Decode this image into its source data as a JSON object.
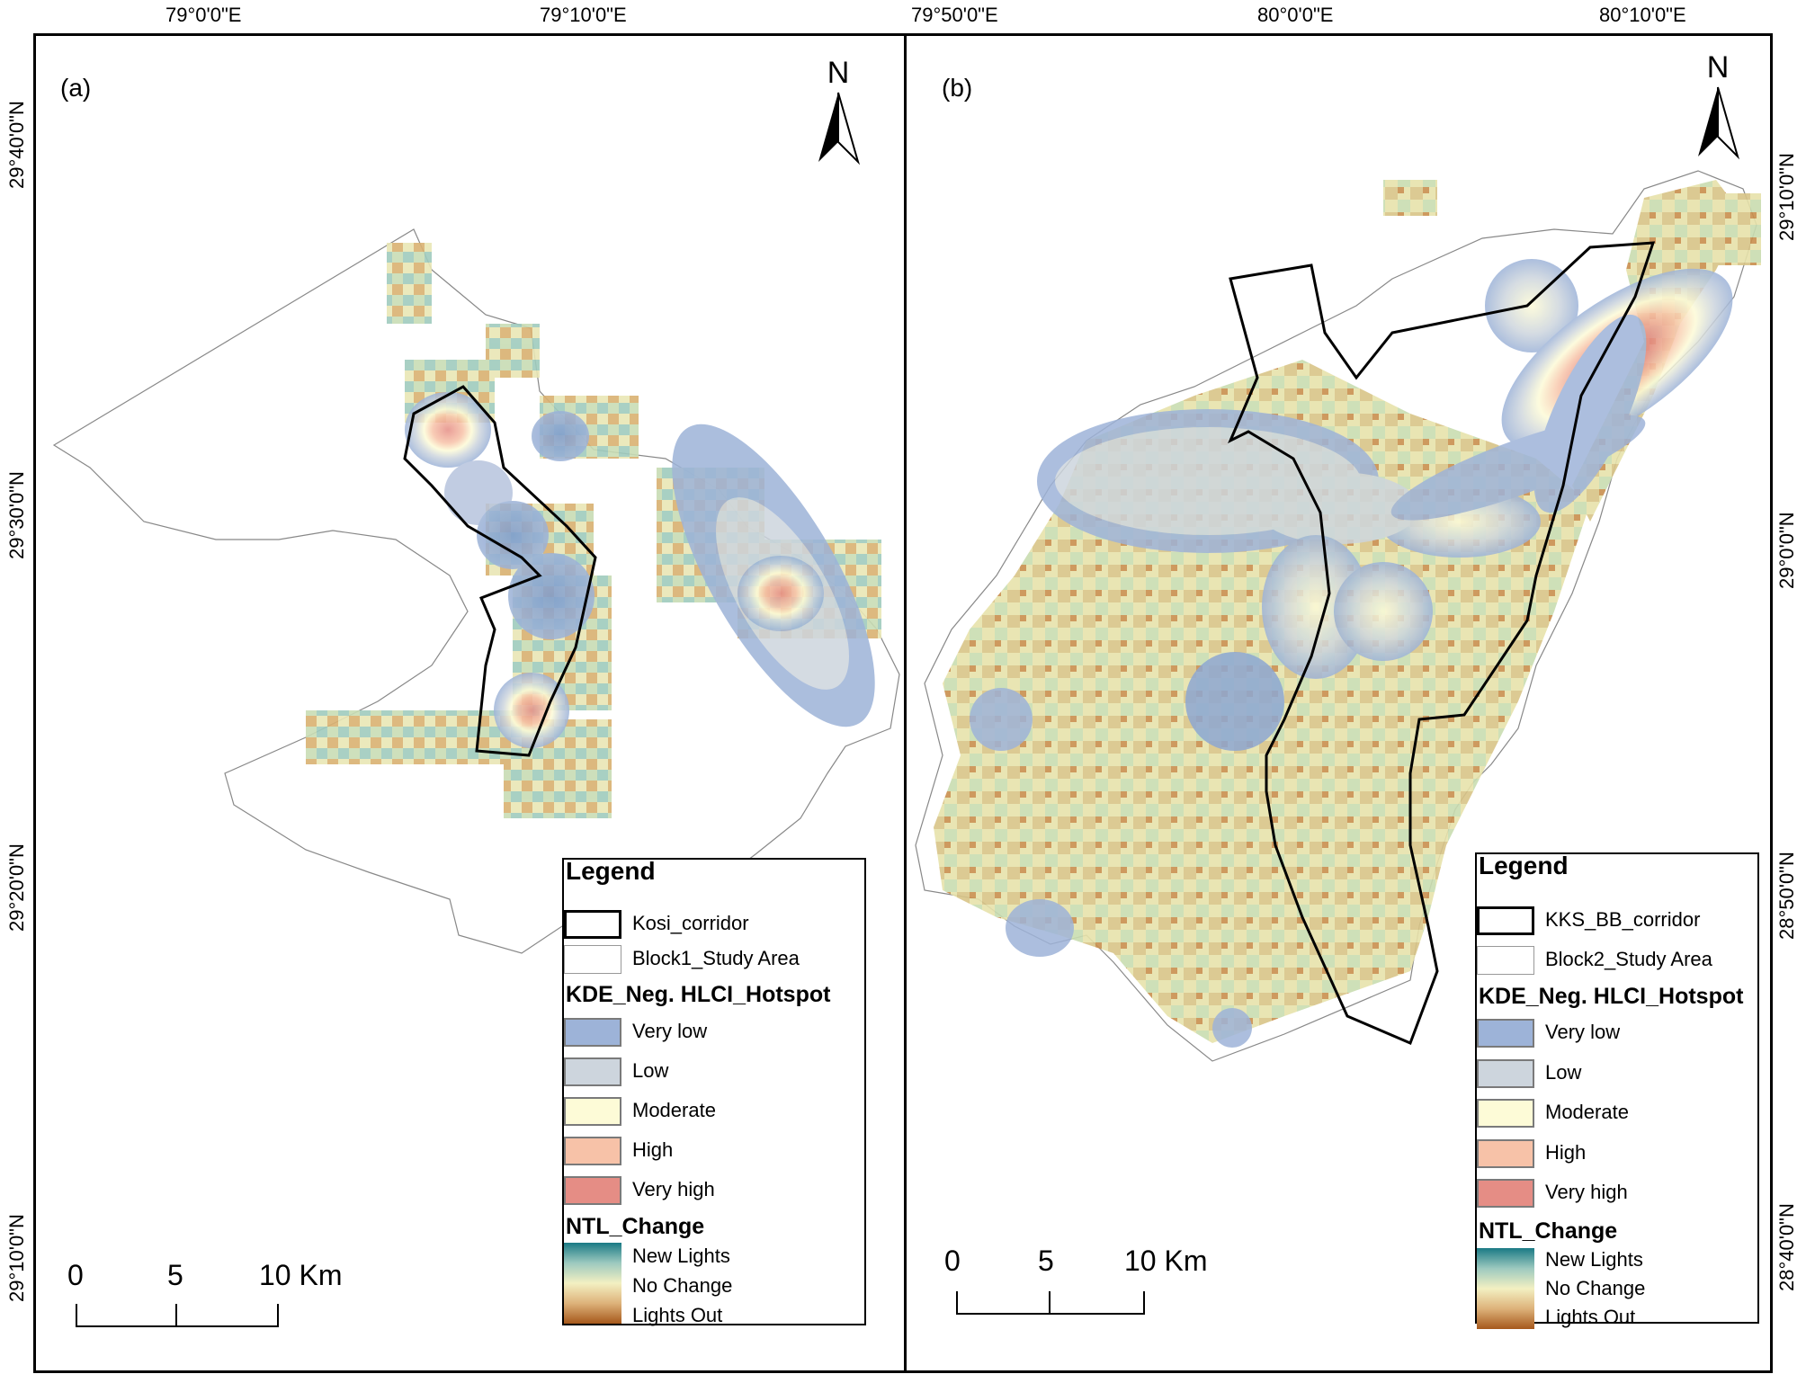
{
  "top_ticks": [
    "79°0'0\"E",
    "79°10'0\"E",
    "79°50'0\"E",
    "80°0'0\"E",
    "80°10'0\"E"
  ],
  "left_ticks": [
    "29°40'0\"N",
    "29°30'0\"N",
    "29°20'0\"N",
    "29°10'0\"N"
  ],
  "right_ticks": [
    "29°10'0\"N",
    "29°0'0\"N",
    "28°50'0\"N",
    "28°40'0\"N"
  ],
  "north_label": "N",
  "panel_a": {
    "tag": "(a)",
    "legend": {
      "title": "Legend",
      "corridor": "Kosi_corridor",
      "study_area": "Block1_Study Area",
      "kde_title": "KDE_Neg. HLCI_Hotspot",
      "classes": [
        "Very low",
        "Low",
        "Moderate",
        "High",
        "Very high"
      ],
      "ntl_title": "NTL_Change",
      "ntl_labels": [
        "New Lights",
        "No Change",
        "Lights Out"
      ]
    },
    "scale": {
      "labels": [
        "0",
        "5",
        "10 Km"
      ]
    }
  },
  "panel_b": {
    "tag": "(b)",
    "legend": {
      "title": "Legend",
      "corridor": "KKS_BB_corridor",
      "study_area": "Block2_Study Area",
      "kde_title": "KDE_Neg. HLCI_Hotspot",
      "classes": [
        "Very low",
        "Low",
        "Moderate",
        "High",
        "Very high"
      ],
      "ntl_title": "NTL_Change",
      "ntl_labels": [
        "New Lights",
        "No Change",
        "Lights Out"
      ]
    },
    "scale": {
      "labels": [
        "0",
        "5",
        "10 Km"
      ]
    }
  },
  "colors": {
    "very_low": "#9db3d8",
    "low": "#cdd5dd",
    "moderate": "#fdfbd7",
    "high": "#f7c2a8",
    "very_high": "#e58d85",
    "new_lights": "#1a7a85",
    "no_change": "#f3f0c2",
    "lights_out": "#a6581b"
  }
}
